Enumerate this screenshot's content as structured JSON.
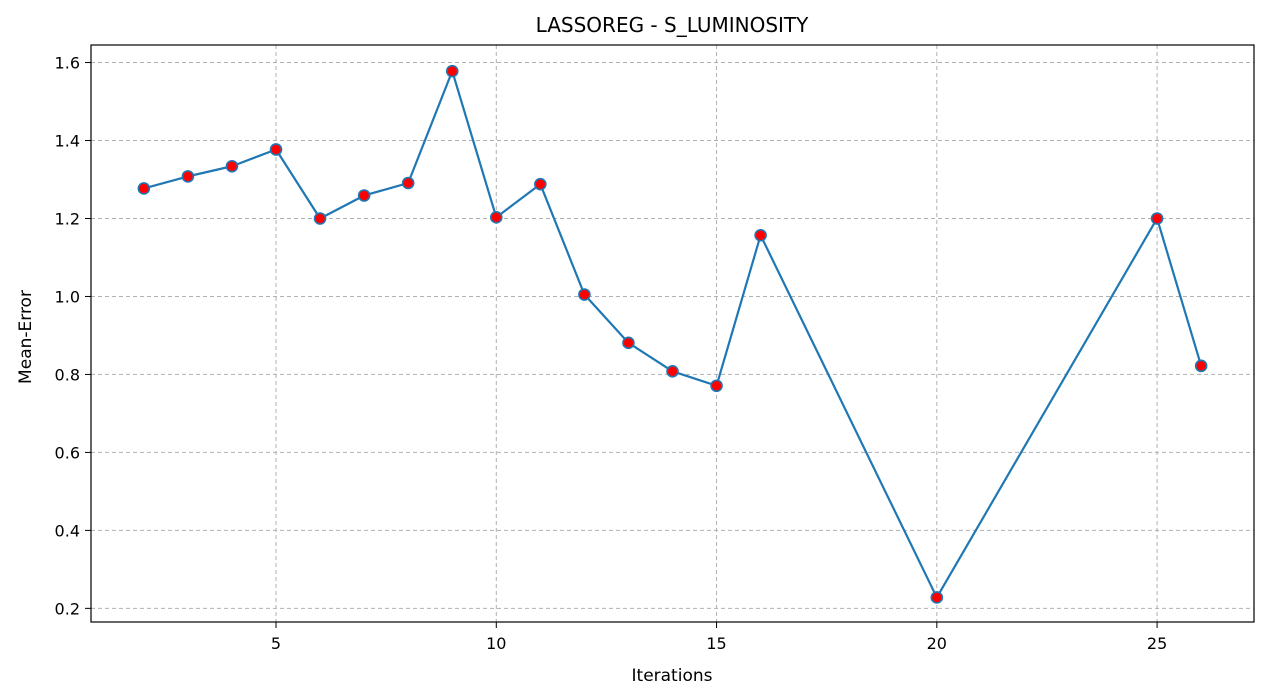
{
  "chart_data": {
    "type": "line",
    "title": "LASSOREG - S_LUMINOSITY",
    "xlabel": "Iterations",
    "ylabel": "Mean-Error",
    "xlim": [
      0.8,
      27.2
    ],
    "ylim": [
      0.165,
      1.645
    ],
    "xticks": [
      5,
      10,
      15,
      20,
      25
    ],
    "yticks": [
      0.2,
      0.4,
      0.6,
      0.8,
      1.0,
      1.2,
      1.4,
      1.6
    ],
    "ytick_labels": [
      "0.2",
      "0.4",
      "0.6",
      "0.8",
      "1.0",
      "1.2",
      "1.4",
      "1.6"
    ],
    "grid": true,
    "legend": "none",
    "line_color": "#1f77b4",
    "marker_color": "#ff0000",
    "marker_edge_color": "#1f77b4",
    "series": [
      {
        "x": [
          2,
          3,
          4,
          5,
          6,
          7,
          8,
          9,
          10,
          11,
          12,
          13,
          14,
          15,
          16,
          20,
          25,
          26
        ],
        "values": [
          1.277,
          1.308,
          1.334,
          1.377,
          1.2,
          1.259,
          1.291,
          1.578,
          1.203,
          1.288,
          1.005,
          0.881,
          0.808,
          0.771,
          1.157,
          0.228,
          1.2,
          0.822
        ]
      }
    ]
  }
}
